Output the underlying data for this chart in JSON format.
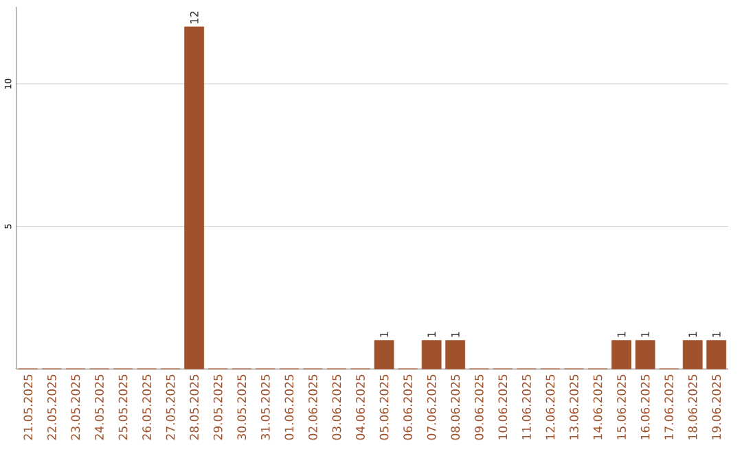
{
  "chart_data": {
    "type": "bar",
    "categories": [
      "21.05.2025",
      "22.05.2025",
      "23.05.2025",
      "24.05.2025",
      "25.05.2025",
      "26.05.2025",
      "27.05.2025",
      "28.05.2025",
      "29.05.2025",
      "30.05.2025",
      "31.05.2025",
      "01.06.2025",
      "02.06.2025",
      "03.06.2025",
      "04.06.2025",
      "05.06.2025",
      "06.06.2025",
      "07.06.2025",
      "08.06.2025",
      "09.06.2025",
      "10.06.2025",
      "11.06.2025",
      "12.06.2025",
      "13.06.2025",
      "14.06.2025",
      "15.06.2025",
      "16.06.2025",
      "17.06.2025",
      "18.06.2025",
      "19.06.2025"
    ],
    "values": [
      0,
      0,
      0,
      0,
      0,
      0,
      0,
      12,
      0,
      0,
      0,
      0,
      0,
      0,
      0,
      1,
      0,
      1,
      1,
      0,
      0,
      0,
      0,
      0,
      0,
      1,
      1,
      0,
      1,
      1
    ],
    "value_labels": [
      null,
      null,
      null,
      null,
      null,
      null,
      null,
      "12",
      null,
      null,
      null,
      null,
      null,
      null,
      null,
      "1",
      null,
      "1",
      "1",
      null,
      null,
      null,
      null,
      null,
      null,
      "1",
      "1",
      null,
      "1",
      "1"
    ],
    "color": "#a0522d",
    "ylim": [
      0,
      12.7
    ],
    "yticks": [
      5,
      10
    ],
    "grid": "y"
  }
}
